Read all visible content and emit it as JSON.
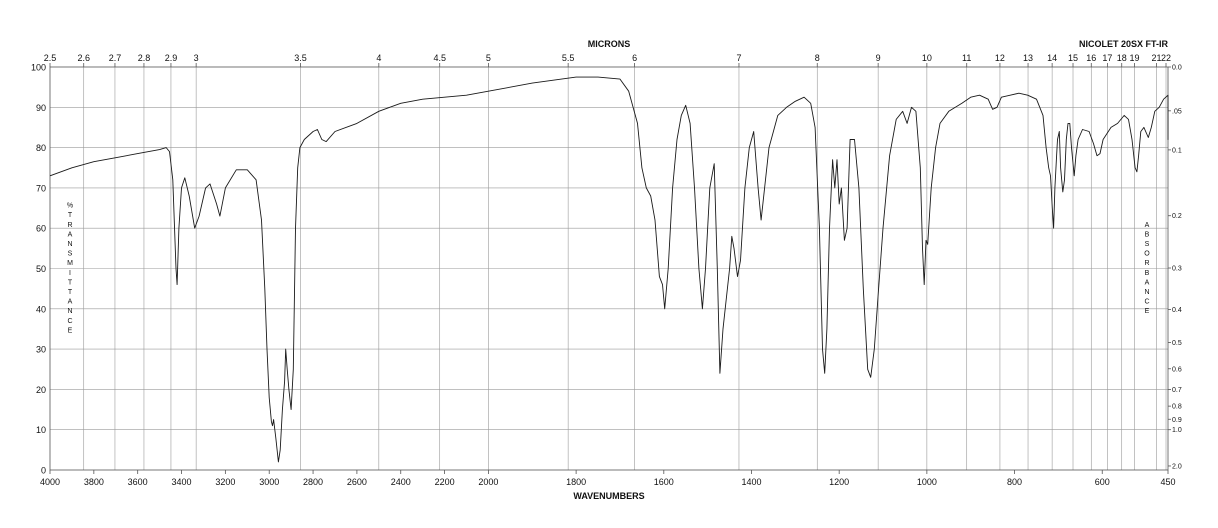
{
  "chart_data": {
    "type": "line",
    "title": "NICOLET 20SX FT-IR",
    "xlabel": "WAVENUMBERS",
    "x2label": "MICRONS",
    "ylabel": "% TRANSMITTANCE",
    "y2label": "ABSORBANCE",
    "xlim": [
      4000,
      450
    ],
    "ylim": [
      0,
      100
    ],
    "x_ticks": [
      "4000",
      "3800",
      "3600",
      "3400",
      "3200",
      "3000",
      "2800",
      "2600",
      "2400",
      "2200",
      "2000",
      "1800",
      "1600",
      "1400",
      "1200",
      "1000",
      "800",
      "600",
      "450"
    ],
    "y_ticks": [
      "0",
      "10",
      "20",
      "30",
      "40",
      "50",
      "60",
      "70",
      "80",
      "90",
      "100"
    ],
    "micron_ticks": [
      "2.5",
      "2.6",
      "2.7",
      "2.8",
      "2.9",
      "3",
      "3.5",
      "4",
      "4.5",
      "5",
      "5.5",
      "6",
      "7",
      "8",
      "9",
      "10",
      "11",
      "12",
      "13",
      "14",
      "15",
      "16",
      "17",
      "18",
      "19",
      "21",
      "22"
    ],
    "absorbance_ticks": [
      "0.0",
      ".05",
      "0.1",
      "0.2",
      "0.3",
      "0.4",
      "0.5",
      "0.6",
      "0.7",
      "0.8",
      "0.9",
      "1.0",
      "2.0"
    ],
    "grid": true,
    "series": [
      {
        "values": [
          [
            4000,
            73
          ],
          [
            3900,
            75
          ],
          [
            3800,
            76.5
          ],
          [
            3700,
            77.5
          ],
          [
            3600,
            78.5
          ],
          [
            3500,
            79.5
          ],
          [
            3470,
            80
          ],
          [
            3455,
            79
          ],
          [
            3440,
            72
          ],
          [
            3425,
            50
          ],
          [
            3420,
            46
          ],
          [
            3412,
            60
          ],
          [
            3400,
            70
          ],
          [
            3385,
            72.5
          ],
          [
            3365,
            68
          ],
          [
            3340,
            60
          ],
          [
            3320,
            63
          ],
          [
            3290,
            70
          ],
          [
            3270,
            71
          ],
          [
            3240,
            66
          ],
          [
            3225,
            63
          ],
          [
            3200,
            70
          ],
          [
            3150,
            74.5
          ],
          [
            3100,
            74.5
          ],
          [
            3060,
            72
          ],
          [
            3035,
            62
          ],
          [
            3020,
            45
          ],
          [
            3010,
            30
          ],
          [
            3000,
            18
          ],
          [
            2990,
            12
          ],
          [
            2985,
            11
          ],
          [
            2980,
            12.5
          ],
          [
            2970,
            8
          ],
          [
            2958,
            2
          ],
          [
            2950,
            5
          ],
          [
            2940,
            15
          ],
          [
            2930,
            22
          ],
          [
            2925,
            30
          ],
          [
            2918,
            25
          ],
          [
            2910,
            20
          ],
          [
            2900,
            15
          ],
          [
            2890,
            25
          ],
          [
            2880,
            60
          ],
          [
            2870,
            75
          ],
          [
            2860,
            80
          ],
          [
            2840,
            82
          ],
          [
            2800,
            84
          ],
          [
            2780,
            84.5
          ],
          [
            2760,
            82
          ],
          [
            2740,
            81.5
          ],
          [
            2700,
            84
          ],
          [
            2600,
            86
          ],
          [
            2500,
            89
          ],
          [
            2400,
            91
          ],
          [
            2300,
            92
          ],
          [
            2200,
            92.5
          ],
          [
            2100,
            93
          ],
          [
            2000,
            94
          ],
          [
            1900,
            96
          ],
          [
            1800,
            97.5
          ],
          [
            1750,
            97.5
          ],
          [
            1700,
            97
          ],
          [
            1680,
            94
          ],
          [
            1660,
            86
          ],
          [
            1650,
            75
          ],
          [
            1640,
            70
          ],
          [
            1630,
            68
          ],
          [
            1620,
            62
          ],
          [
            1610,
            48
          ],
          [
            1603,
            46
          ],
          [
            1598,
            40
          ],
          [
            1590,
            50
          ],
          [
            1580,
            70
          ],
          [
            1570,
            82
          ],
          [
            1560,
            88
          ],
          [
            1550,
            90.5
          ],
          [
            1540,
            86
          ],
          [
            1530,
            70
          ],
          [
            1520,
            50
          ],
          [
            1512,
            40
          ],
          [
            1505,
            50
          ],
          [
            1495,
            70
          ],
          [
            1485,
            76
          ],
          [
            1478,
            50
          ],
          [
            1472,
            24
          ],
          [
            1465,
            35
          ],
          [
            1455,
            45
          ],
          [
            1450,
            50
          ],
          [
            1445,
            58
          ],
          [
            1440,
            55
          ],
          [
            1432,
            48
          ],
          [
            1425,
            52
          ],
          [
            1415,
            70
          ],
          [
            1405,
            80
          ],
          [
            1395,
            84
          ],
          [
            1385,
            70
          ],
          [
            1378,
            62
          ],
          [
            1370,
            70
          ],
          [
            1360,
            80
          ],
          [
            1340,
            88
          ],
          [
            1320,
            90
          ],
          [
            1300,
            91.5
          ],
          [
            1280,
            92.5
          ],
          [
            1265,
            91
          ],
          [
            1255,
            85
          ],
          [
            1245,
            60
          ],
          [
            1238,
            30
          ],
          [
            1233,
            24
          ],
          [
            1228,
            35
          ],
          [
            1222,
            60
          ],
          [
            1215,
            77
          ],
          [
            1210,
            70
          ],
          [
            1205,
            77
          ],
          [
            1200,
            66
          ],
          [
            1195,
            70
          ],
          [
            1188,
            57
          ],
          [
            1182,
            60
          ],
          [
            1175,
            82
          ],
          [
            1165,
            82
          ],
          [
            1155,
            70
          ],
          [
            1145,
            45
          ],
          [
            1135,
            25
          ],
          [
            1128,
            23
          ],
          [
            1120,
            30
          ],
          [
            1110,
            45
          ],
          [
            1100,
            60
          ],
          [
            1085,
            78
          ],
          [
            1070,
            87
          ],
          [
            1055,
            89
          ],
          [
            1045,
            86
          ],
          [
            1035,
            90
          ],
          [
            1025,
            89
          ],
          [
            1015,
            75
          ],
          [
            1010,
            55
          ],
          [
            1006,
            46
          ],
          [
            1002,
            57
          ],
          [
            998,
            56
          ],
          [
            990,
            70
          ],
          [
            980,
            80
          ],
          [
            970,
            86
          ],
          [
            950,
            89
          ],
          [
            920,
            91
          ],
          [
            900,
            92.5
          ],
          [
            880,
            93
          ],
          [
            860,
            92
          ],
          [
            850,
            89.5
          ],
          [
            840,
            90
          ],
          [
            830,
            92.5
          ],
          [
            810,
            93
          ],
          [
            790,
            93.5
          ],
          [
            770,
            93
          ],
          [
            750,
            92
          ],
          [
            735,
            88
          ],
          [
            728,
            80
          ],
          [
            722,
            75
          ],
          [
            718,
            73
          ],
          [
            714,
            65
          ],
          [
            711,
            60
          ],
          [
            708,
            70
          ],
          [
            704,
            78
          ],
          [
            702,
            82
          ],
          [
            698,
            84
          ],
          [
            695,
            75
          ],
          [
            690,
            69
          ],
          [
            686,
            72
          ],
          [
            682,
            82
          ],
          [
            678,
            86
          ],
          [
            674,
            86
          ],
          [
            670,
            80
          ],
          [
            664,
            73
          ],
          [
            660,
            78
          ],
          [
            655,
            82
          ],
          [
            645,
            84.5
          ],
          [
            630,
            84
          ],
          [
            620,
            81
          ],
          [
            612,
            78
          ],
          [
            605,
            78.5
          ],
          [
            598,
            82
          ],
          [
            580,
            85
          ],
          [
            565,
            86
          ],
          [
            550,
            88
          ],
          [
            540,
            87
          ],
          [
            532,
            82
          ],
          [
            525,
            75
          ],
          [
            521,
            74
          ],
          [
            517,
            78
          ],
          [
            512,
            84
          ],
          [
            505,
            85
          ],
          [
            495,
            82.5
          ],
          [
            488,
            85
          ],
          [
            480,
            89
          ],
          [
            470,
            90
          ],
          [
            460,
            92
          ],
          [
            450,
            93
          ],
          [
            440,
            92
          ],
          [
            430,
            90
          ],
          [
            422,
            85
          ],
          [
            418,
            82
          ],
          [
            414,
            85
          ],
          [
            410,
            90
          ],
          [
            400,
            91
          ],
          [
            395,
            91.5
          ],
          [
            390,
            90.5
          ],
          [
            385,
            90
          ],
          [
            375,
            89
          ],
          [
            365,
            87
          ],
          [
            355,
            88
          ]
        ]
      }
    ]
  }
}
